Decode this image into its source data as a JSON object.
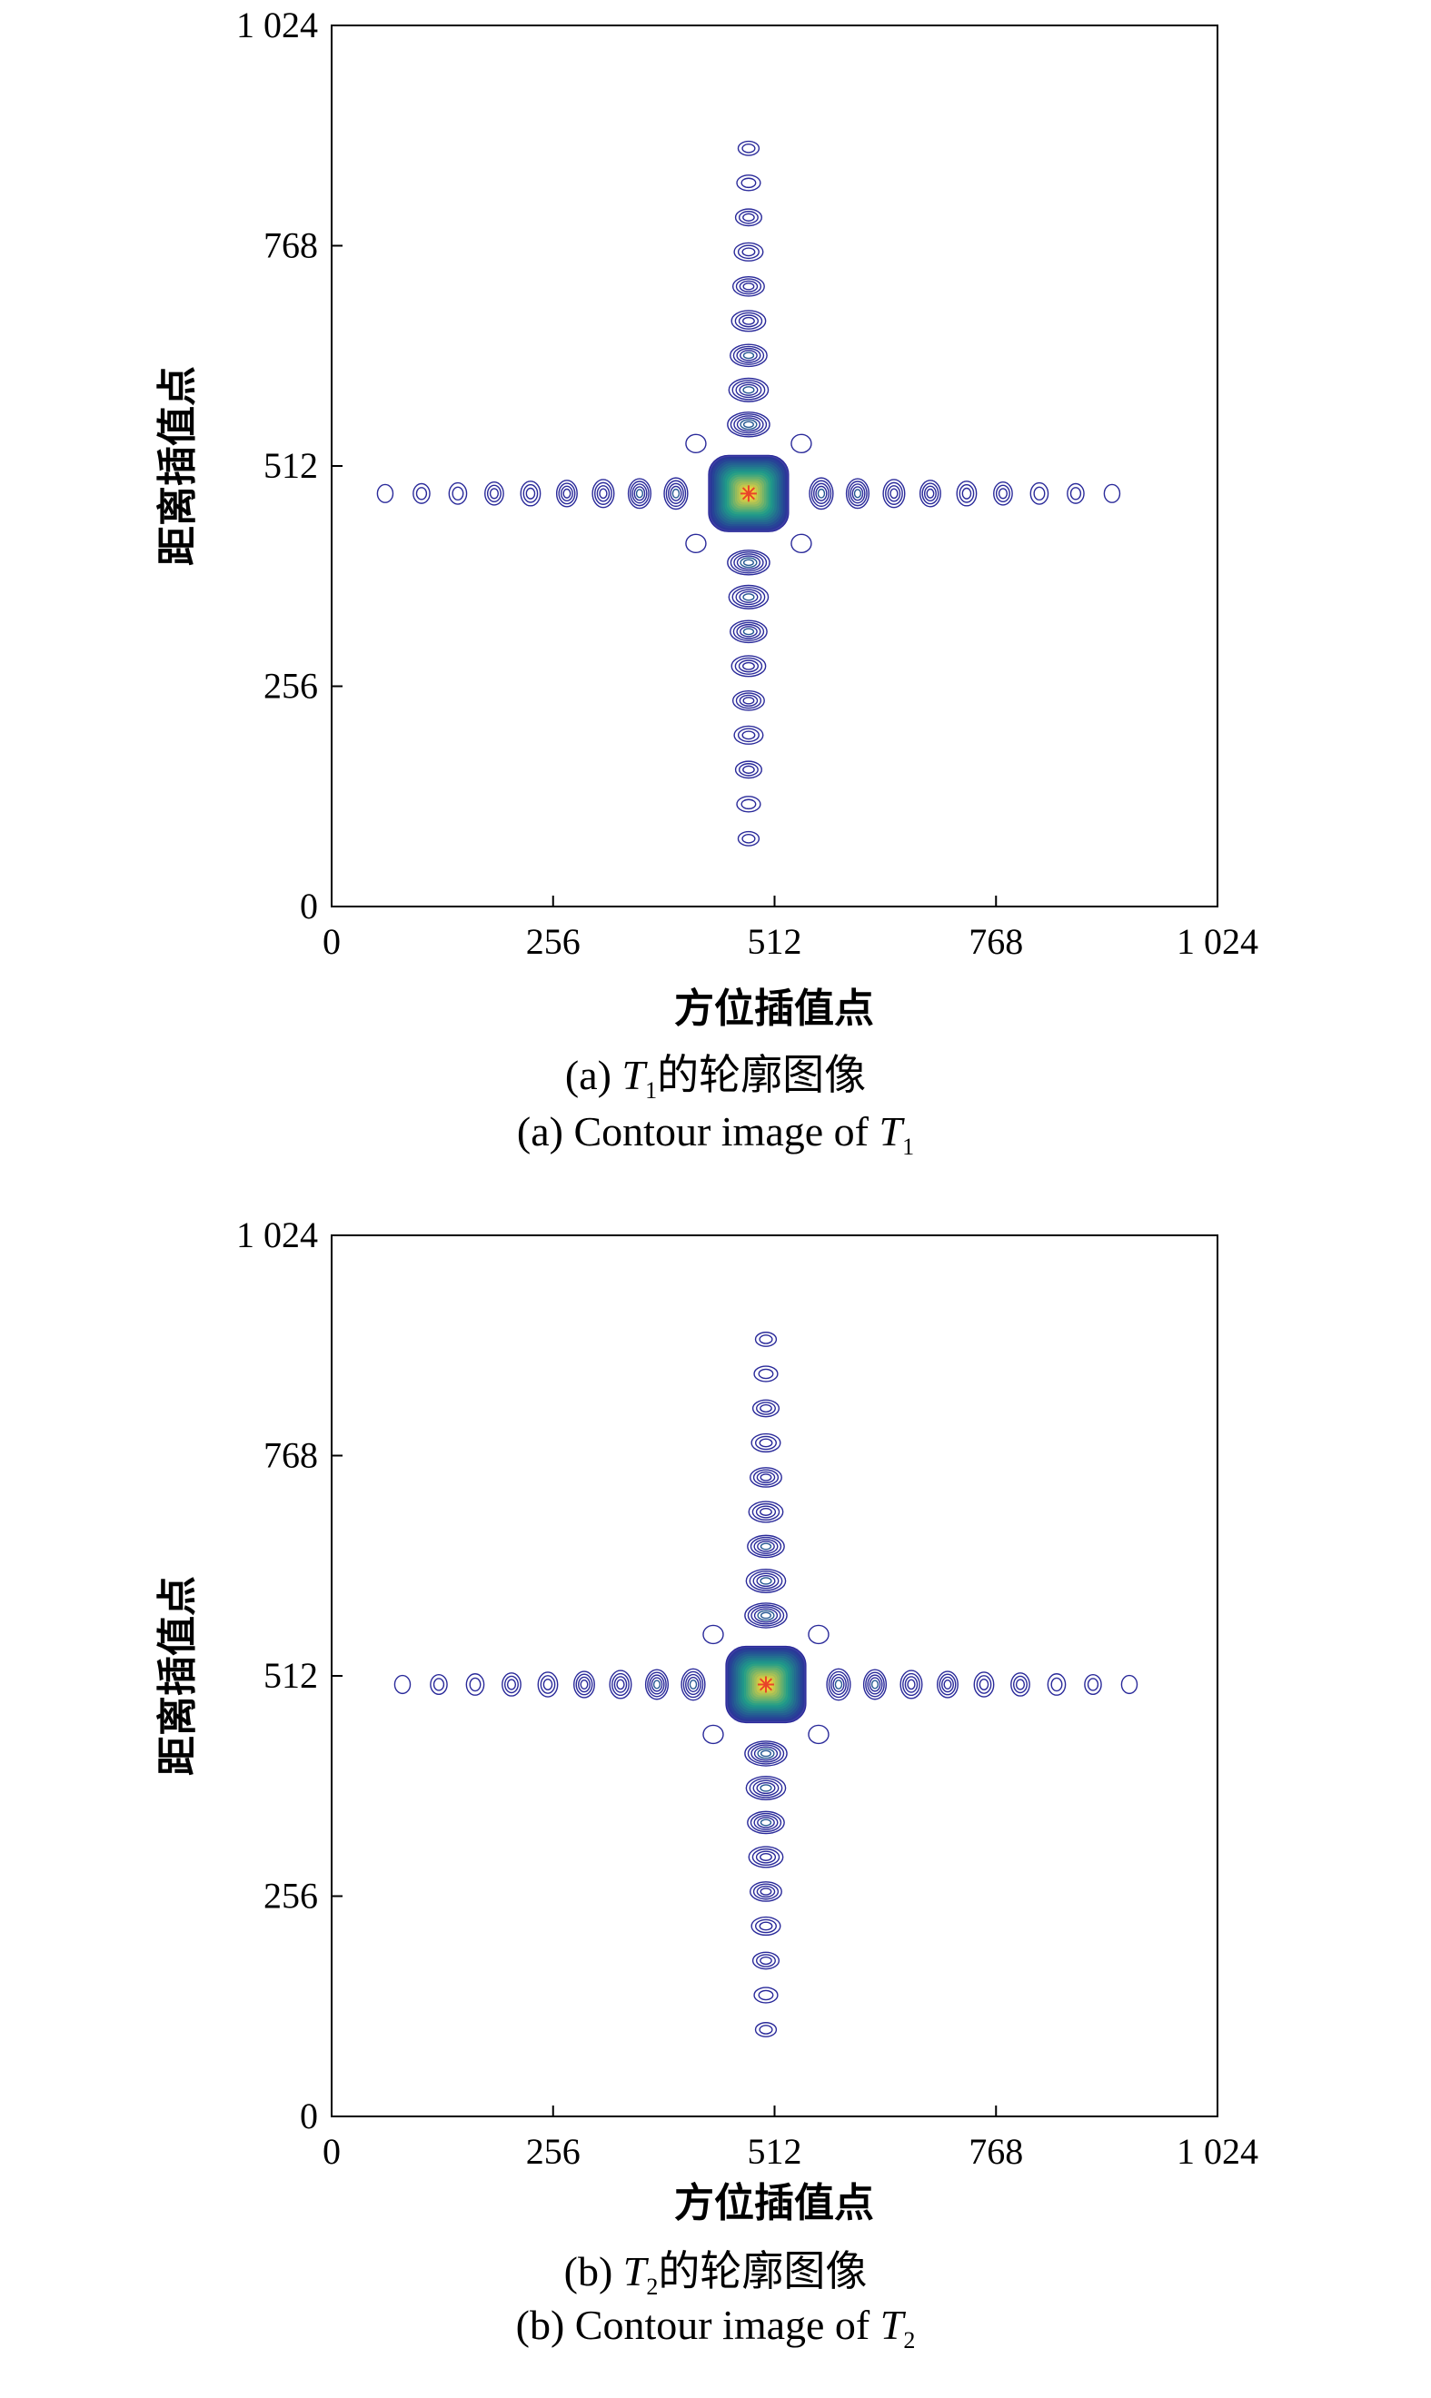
{
  "chart_data": [
    {
      "type": "contour",
      "panel": "a",
      "xlabel": "方位插值点",
      "ylabel": "距离插值点",
      "xlim": [
        0,
        1024
      ],
      "ylim": [
        0,
        1024
      ],
      "xticks": [
        "0",
        "256",
        "512",
        "768",
        "1 024"
      ],
      "yticks": [
        "0",
        "256",
        "512",
        "768",
        "1 024"
      ],
      "peak": {
        "x": 482,
        "y": 480
      },
      "sidelobe_extent": {
        "x": [
          70,
          900
        ],
        "y": [
          95,
          865
        ]
      },
      "caption_cn": {
        "prefix": "(a) ",
        "symbol": "T",
        "sub": "1",
        "suffix": "的轮廓图像"
      },
      "caption_en": {
        "prefix": "(a) Contour image of ",
        "symbol": "T",
        "sub": "1"
      }
    },
    {
      "type": "contour",
      "panel": "b",
      "xlabel": "方位插值点",
      "ylabel": "距离插值点",
      "xlim": [
        0,
        1024
      ],
      "ylim": [
        0,
        1024
      ],
      "xticks": [
        "0",
        "256",
        "512",
        "768",
        "1 024"
      ],
      "yticks": [
        "0",
        "256",
        "512",
        "768",
        "1 024"
      ],
      "peak": {
        "x": 502,
        "y": 502
      },
      "sidelobe_extent": {
        "x": [
          75,
          928
        ],
        "y": [
          115,
          885
        ]
      },
      "caption_cn": {
        "prefix": "(b) ",
        "symbol": "T",
        "sub": "2",
        "suffix": "的轮廓图像"
      },
      "caption_en": {
        "prefix": "(b) Contour image of ",
        "symbol": "T",
        "sub": "2"
      }
    }
  ],
  "colors": {
    "contour_outer": "#2a2a9a",
    "contour_mid": "#1f9e89",
    "contour_inner": "#f5d33a",
    "peak": "#e8452a"
  }
}
